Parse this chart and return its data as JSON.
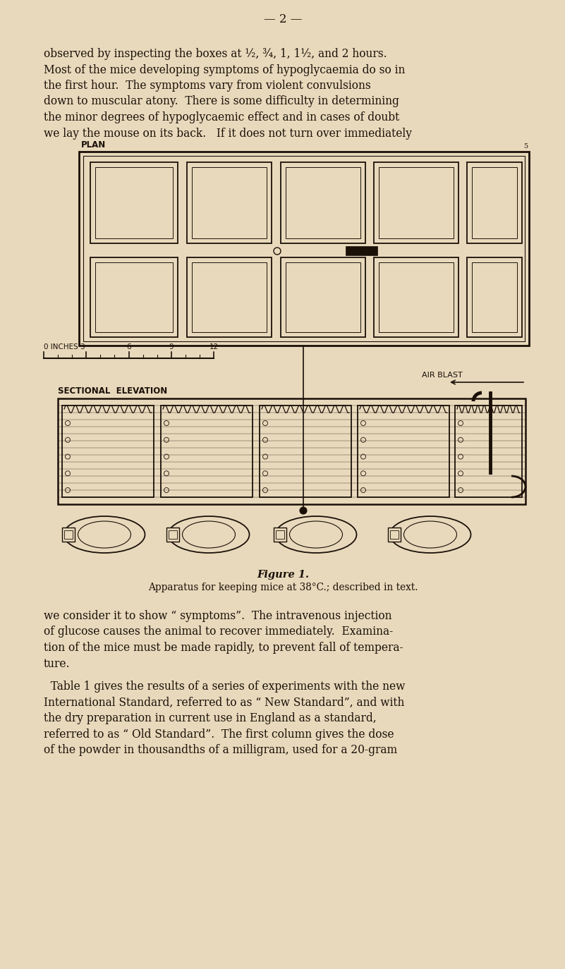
{
  "bg_color": "#e8d9bc",
  "page_width": 8.01,
  "page_height": 13.74,
  "dpi": 100,
  "title_text": "— 2 —",
  "para1_lines": [
    "observed by inspecting the boxes at ½, ¾, 1, 1½, and 2 hours.",
    "Most of the mice developing symptoms of hypoglycaemia do so in",
    "the first hour.  The symptoms vary from violent convulsions",
    "down to muscular atony.  There is some difficulty in determining",
    "the minor degrees of hypoglycaemic effect and in cases of doubt",
    "we lay the mouse on its back.   If it does not turn over immediately"
  ],
  "plan_label": "PLAN",
  "sectional_label": "SECTIONAL  ELEVATION",
  "air_blast_label": "AIR BLAST",
  "fig_number": "Figure 1.",
  "fig_caption": "Apparatus for keeping mice at 38°C.; described in text.",
  "para2_lines": [
    "we consider it to show “ symptoms”.  The intravenous injection",
    "of glucose causes the animal to recover immediately.  Examina-",
    "tion of the mice must be made rapidly, to prevent fall of tempera-",
    "ture."
  ],
  "para3_lines": [
    "  Table 1 gives the results of a series of experiments with the new",
    "International Standard, referred to as “ New Standard”, and with",
    "the dry preparation in current use in England as a standard,",
    "referred to as “ Old Standard”.  The first column gives the dose",
    "of the powder in thousandths of a milligram, used for a 20-gram"
  ],
  "ink_color": "#1a1008",
  "font_size_body": 11.2,
  "font_size_label": 8.5
}
